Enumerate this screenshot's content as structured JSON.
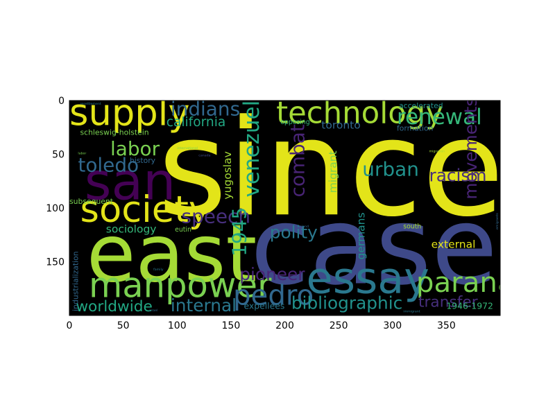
{
  "chart_data": {
    "type": "wordcloud_image",
    "title": "",
    "xlabel": "",
    "ylabel": "",
    "xlim": [
      0,
      400
    ],
    "ylim": [
      200,
      0
    ],
    "xticks": [
      0,
      50,
      100,
      150,
      200,
      250,
      300,
      350
    ],
    "yticks": [
      0,
      50,
      100,
      150
    ],
    "background": "#000000",
    "colors": {
      "yellow": "#e3e419",
      "lime": "#a5db36",
      "green": "#7ad151",
      "teal": "#35b779",
      "teal2": "#22a884",
      "cyan": "#21918c",
      "blue": "#2a788e",
      "slate": "#31688e",
      "indigo": "#3e4989",
      "violet": "#472f7d",
      "purple": "#482475",
      "dark": "#440154"
    },
    "words": [
      {
        "text": "since",
        "x": 82,
        "y": 106,
        "size": 124,
        "color": "#e3e419",
        "rot": 0
      },
      {
        "text": "case",
        "x": 168,
        "y": 170,
        "size": 100,
        "color": "#3e4989",
        "rot": 0
      },
      {
        "text": "east",
        "x": 16,
        "y": 168,
        "size": 74,
        "color": "#a5db36",
        "rot": 0
      },
      {
        "text": "supply",
        "x": 0,
        "y": 23,
        "size": 34,
        "color": "#e3e419",
        "rot": 0
      },
      {
        "text": "san",
        "x": 14,
        "y": 92,
        "size": 48,
        "color": "#440154",
        "rot": 0
      },
      {
        "text": "society",
        "x": 10,
        "y": 113,
        "size": 34,
        "color": "#e3e419",
        "rot": 0
      },
      {
        "text": "manpower",
        "x": 18,
        "y": 183,
        "size": 32,
        "color": "#7ad151",
        "rot": 0
      },
      {
        "text": "essay",
        "x": 220,
        "y": 179,
        "size": 40,
        "color": "#2a788e",
        "rot": 0
      },
      {
        "text": "technology",
        "x": 192,
        "y": 21,
        "size": 28,
        "color": "#a5db36",
        "rot": 0
      },
      {
        "text": "paraná",
        "x": 322,
        "y": 178,
        "size": 26,
        "color": "#7ad151",
        "rot": 0
      },
      {
        "text": "pedro",
        "x": 152,
        "y": 190,
        "size": 26,
        "color": "#31688e",
        "rot": 0
      },
      {
        "text": "indians",
        "x": 94,
        "y": 14,
        "size": 18,
        "color": "#31688e",
        "rot": 0
      },
      {
        "text": "renewal",
        "x": 304,
        "y": 22,
        "size": 20,
        "color": "#35b779",
        "rot": 0
      },
      {
        "text": "movements",
        "x": 378,
        "y": 92,
        "size": 16,
        "color": "#482475",
        "rot": -90
      },
      {
        "text": "labor",
        "x": 38,
        "y": 51,
        "size": 18,
        "color": "#7ad151",
        "rot": 0
      },
      {
        "text": "toledo",
        "x": 8,
        "y": 66,
        "size": 18,
        "color": "#31688e",
        "rot": 0
      },
      {
        "text": "venezuela",
        "x": 176,
        "y": 90,
        "size": 20,
        "color": "#22a884",
        "rot": -90
      },
      {
        "text": "combat",
        "x": 218,
        "y": 90,
        "size": 18,
        "color": "#482475",
        "rot": -90
      },
      {
        "text": "urban",
        "x": 272,
        "y": 70,
        "size": 18,
        "color": "#21918c",
        "rot": 0
      },
      {
        "text": "racism",
        "x": 334,
        "y": 75,
        "size": 16,
        "color": "#472f7d",
        "rot": 0
      },
      {
        "text": "speech",
        "x": 104,
        "y": 114,
        "size": 18,
        "color": "#472f7d",
        "rot": 0
      },
      {
        "text": "1945",
        "x": 164,
        "y": 145,
        "size": 18,
        "color": "#22a884",
        "rot": -90
      },
      {
        "text": "polity",
        "x": 186,
        "y": 128,
        "size": 16,
        "color": "#2a788e",
        "rot": 0
      },
      {
        "text": "pioneer",
        "x": 158,
        "y": 167,
        "size": 16,
        "color": "#482475",
        "rot": 0
      },
      {
        "text": "bibliographic",
        "x": 206,
        "y": 194,
        "size": 16,
        "color": "#21918c",
        "rot": 0
      },
      {
        "text": "internal",
        "x": 94,
        "y": 196,
        "size": 16,
        "color": "#2a788e",
        "rot": 0
      },
      {
        "text": "worldwide",
        "x": 6,
        "y": 196,
        "size": 14,
        "color": "#22a884",
        "rot": 0
      },
      {
        "text": "transfer",
        "x": 324,
        "y": 192,
        "size": 14,
        "color": "#472f7d",
        "rot": 0
      },
      {
        "text": "california",
        "x": 90,
        "y": 24,
        "size": 12,
        "color": "#22a884",
        "rot": 0
      },
      {
        "text": "schleswig-holstein",
        "x": 10,
        "y": 32,
        "size": 7,
        "color": "#7ad151",
        "rot": 0
      },
      {
        "text": "history",
        "x": 56,
        "y": 58,
        "size": 7,
        "color": "#31688e",
        "rot": 0
      },
      {
        "text": "yugoslav",
        "x": 150,
        "y": 92,
        "size": 10,
        "color": "#a5db36",
        "rot": -90
      },
      {
        "text": "migrant",
        "x": 248,
        "y": 86,
        "size": 10,
        "color": "#7ad151",
        "rot": -90
      },
      {
        "text": "germans",
        "x": 274,
        "y": 148,
        "size": 10,
        "color": "#21918c",
        "rot": -90
      },
      {
        "text": "toronto",
        "x": 234,
        "y": 26,
        "size": 10,
        "color": "#31688e",
        "rot": 0
      },
      {
        "text": "opposing",
        "x": 196,
        "y": 22,
        "size": 6,
        "color": "#35b779",
        "rot": 0
      },
      {
        "text": "accelerated",
        "x": 306,
        "y": 7,
        "size": 7,
        "color": "#21918c",
        "rot": 0
      },
      {
        "text": "formation",
        "x": 304,
        "y": 28,
        "size": 7,
        "color": "#31688e",
        "rot": 0
      },
      {
        "text": "sociology",
        "x": 34,
        "y": 123,
        "size": 10,
        "color": "#35b779",
        "rot": 0
      },
      {
        "text": "eutin",
        "x": 98,
        "y": 122,
        "size": 6,
        "color": "#7ad151",
        "rot": 0
      },
      {
        "text": "subsequent",
        "x": 0,
        "y": 96,
        "size": 7,
        "color": "#7ad151",
        "rot": 0
      },
      {
        "text": "industrialization",
        "x": 8,
        "y": 196,
        "size": 7,
        "color": "#31688e",
        "rot": -90
      },
      {
        "text": "south",
        "x": 310,
        "y": 119,
        "size": 6,
        "color": "#a5db36",
        "rot": 0
      },
      {
        "text": "external",
        "x": 336,
        "y": 137,
        "size": 10,
        "color": "#e3e419",
        "rot": 0
      },
      {
        "text": "expellees",
        "x": 162,
        "y": 194,
        "size": 8,
        "color": "#2a788e",
        "rot": 0
      },
      {
        "text": "1946-1972",
        "x": 350,
        "y": 194,
        "size": 8,
        "color": "#35b779",
        "rot": 0
      },
      {
        "text": "resettlement",
        "x": 10,
        "y": 4,
        "size": 3,
        "color": "#2a788e",
        "rot": 0
      },
      {
        "text": "international",
        "x": 100,
        "y": 45,
        "size": 3,
        "color": "#7ad151",
        "rot": 0
      },
      {
        "text": "canada",
        "x": 120,
        "y": 52,
        "size": 3,
        "color": "#3e4989",
        "rot": 0
      },
      {
        "text": "labor",
        "x": 8,
        "y": 50,
        "size": 3,
        "color": "#7ad151",
        "rot": 0
      },
      {
        "text": "migration",
        "x": 334,
        "y": 48,
        "size": 3,
        "color": "#a5db36",
        "rot": 0
      },
      {
        "text": "poland",
        "x": 212,
        "y": 118,
        "size": 3,
        "color": "#31688e",
        "rot": 0
      },
      {
        "text": "immigrant",
        "x": 310,
        "y": 197,
        "size": 3,
        "color": "#2a788e",
        "rot": 0
      },
      {
        "text": "emigrants",
        "x": 398,
        "y": 120,
        "size": 3,
        "color": "#31688e",
        "rot": -90
      },
      {
        "text": "family",
        "x": 78,
        "y": 158,
        "size": 3,
        "color": "#2a788e",
        "rot": 0
      },
      {
        "text": "israel",
        "x": 74,
        "y": 196,
        "size": 3,
        "color": "#31688e",
        "rot": 0
      },
      {
        "text": "japan",
        "x": 378,
        "y": 176,
        "size": 3,
        "color": "#7ad151",
        "rot": -90
      }
    ]
  }
}
